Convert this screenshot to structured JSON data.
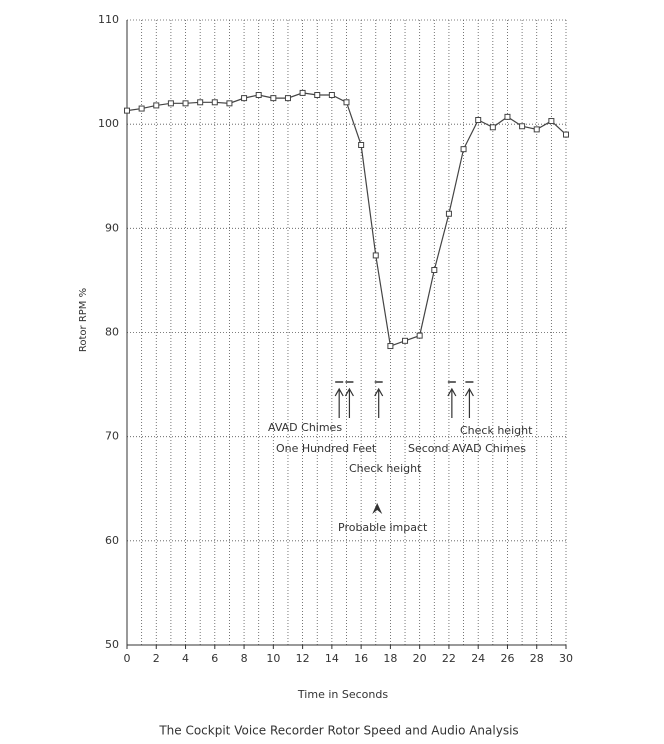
{
  "chart_data": {
    "type": "line",
    "title": "The Cockpit Voice Recorder Rotor Speed and Audio Analysis",
    "xlabel": "Time in Seconds",
    "ylabel": "Rotor RPM %",
    "x": [
      0,
      1,
      2,
      3,
      4,
      5,
      6,
      7,
      8,
      9,
      10,
      11,
      12,
      13,
      14,
      15,
      16,
      17,
      18,
      19,
      20,
      21,
      22,
      23,
      24,
      25,
      26,
      27,
      28,
      29,
      30
    ],
    "series": [
      {
        "name": "Rotor RPM",
        "color": "#444",
        "values": [
          101.3,
          101.5,
          101.8,
          102.0,
          102.0,
          102.1,
          102.1,
          102.0,
          102.5,
          102.8,
          102.5,
          102.5,
          103.0,
          102.8,
          102.8,
          102.1,
          98.0,
          87.4,
          78.7,
          79.2,
          79.7,
          86.0,
          91.4,
          97.6,
          100.4,
          99.7,
          100.7,
          99.8,
          99.5,
          100.3,
          99.0
        ]
      }
    ],
    "xlim": [
      0,
      30
    ],
    "xticks": [
      0,
      2,
      4,
      6,
      8,
      10,
      12,
      14,
      16,
      18,
      20,
      22,
      24,
      26,
      28,
      30
    ],
    "ylim": [
      50,
      110
    ],
    "yticks": [
      50,
      60,
      70,
      80,
      90,
      100,
      110
    ],
    "xgrid_step": 1,
    "grid": true,
    "annotations": [
      {
        "text": "AVAD Chimes",
        "x": 14.5
      },
      {
        "text": "One Hundred Feet",
        "x": 15.2
      },
      {
        "text": "Check height",
        "x": 17.2
      },
      {
        "text": "Second AVAD Chimes",
        "x": 22.2
      },
      {
        "text": "Check height",
        "x": 23.4
      }
    ],
    "impact": {
      "text": "Probable impact",
      "x": 17.1
    }
  }
}
